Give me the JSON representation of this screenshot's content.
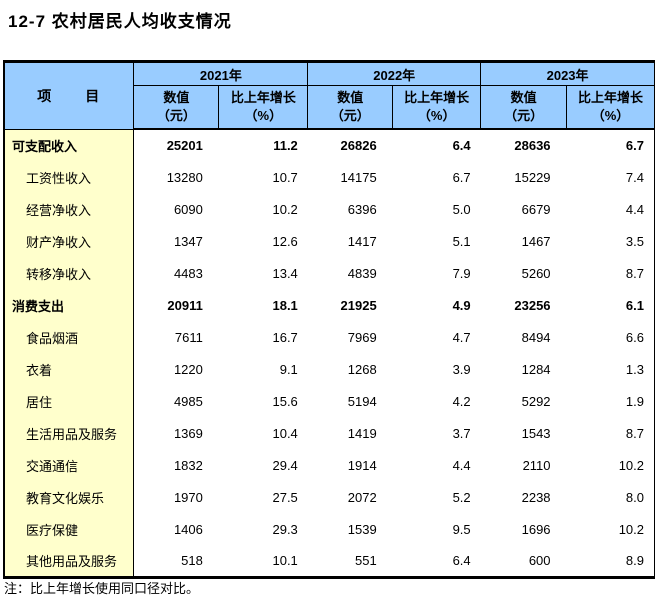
{
  "page": {
    "title": "12-7 农村居民人均收支情况",
    "note": "注：比上年增长使用同口径对比。"
  },
  "colors": {
    "header_bg": "#99CCFF",
    "stub_bg": "#FFFFCC",
    "border": "#000000",
    "text": "#000000"
  },
  "table": {
    "stub_header": "项　　目",
    "year_groups": [
      "2021年",
      "2022年",
      "2023年"
    ],
    "sub_headers": {
      "value_line1": "数值",
      "value_line2": "（元）",
      "growth_line1": "比上年增长",
      "growth_line2": "（%）"
    },
    "rows": [
      {
        "label": "可支配收入",
        "bold": true,
        "indent": false,
        "values": [
          "25201",
          "11.2",
          "26826",
          "6.4",
          "28636",
          "6.7"
        ]
      },
      {
        "label": "工资性收入",
        "bold": false,
        "indent": true,
        "values": [
          "13280",
          "10.7",
          "14175",
          "6.7",
          "15229",
          "7.4"
        ]
      },
      {
        "label": "经营净收入",
        "bold": false,
        "indent": true,
        "values": [
          "6090",
          "10.2",
          "6396",
          "5.0",
          "6679",
          "4.4"
        ]
      },
      {
        "label": "财产净收入",
        "bold": false,
        "indent": true,
        "values": [
          "1347",
          "12.6",
          "1417",
          "5.1",
          "1467",
          "3.5"
        ]
      },
      {
        "label": "转移净收入",
        "bold": false,
        "indent": true,
        "values": [
          "4483",
          "13.4",
          "4839",
          "7.9",
          "5260",
          "8.7"
        ]
      },
      {
        "label": "消费支出",
        "bold": true,
        "indent": false,
        "values": [
          "20911",
          "18.1",
          "21925",
          "4.9",
          "23256",
          "6.1"
        ]
      },
      {
        "label": "食品烟酒",
        "bold": false,
        "indent": true,
        "values": [
          "7611",
          "16.7",
          "7969",
          "4.7",
          "8494",
          "6.6"
        ]
      },
      {
        "label": "衣着",
        "bold": false,
        "indent": true,
        "values": [
          "1220",
          "9.1",
          "1268",
          "3.9",
          "1284",
          "1.3"
        ]
      },
      {
        "label": "居住",
        "bold": false,
        "indent": true,
        "values": [
          "4985",
          "15.6",
          "5194",
          "4.2",
          "5292",
          "1.9"
        ]
      },
      {
        "label": "生活用品及服务",
        "bold": false,
        "indent": true,
        "values": [
          "1369",
          "10.4",
          "1419",
          "3.7",
          "1543",
          "8.7"
        ]
      },
      {
        "label": "交通通信",
        "bold": false,
        "indent": true,
        "values": [
          "1832",
          "29.4",
          "1914",
          "4.4",
          "2110",
          "10.2"
        ]
      },
      {
        "label": "教育文化娱乐",
        "bold": false,
        "indent": true,
        "values": [
          "1970",
          "27.5",
          "2072",
          "5.2",
          "2238",
          "8.0"
        ]
      },
      {
        "label": "医疗保健",
        "bold": false,
        "indent": true,
        "values": [
          "1406",
          "29.3",
          "1539",
          "9.5",
          "1696",
          "10.2"
        ]
      },
      {
        "label": "其他用品及服务",
        "bold": false,
        "indent": true,
        "values": [
          "518",
          "10.1",
          "551",
          "6.4",
          "600",
          "8.9"
        ]
      }
    ]
  }
}
